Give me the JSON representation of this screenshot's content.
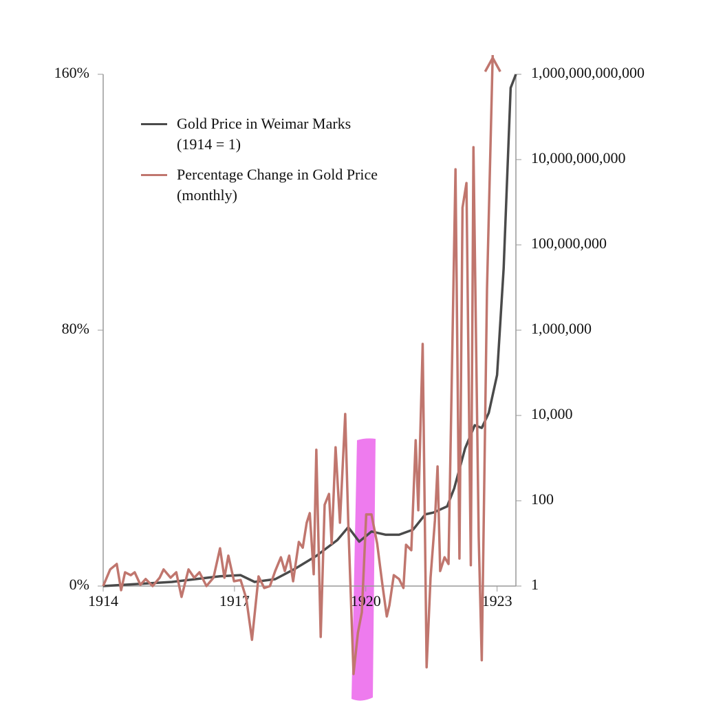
{
  "chart_data": {
    "type": "line",
    "xlim": [
      1914,
      1923.43
    ],
    "xticks": [
      1914,
      1917,
      1920,
      1923
    ],
    "ylim": [
      0,
      160
    ],
    "yticks": [
      {
        "value": 0,
        "label": "0%"
      },
      {
        "value": 80,
        "label": "80%"
      },
      {
        "value": 160,
        "label": "160%"
      }
    ],
    "y2lim": [
      1,
      1000000000000
    ],
    "y2log": true,
    "y2ticks": [
      {
        "value": 1,
        "label": "1"
      },
      {
        "value": 100,
        "label": "100"
      },
      {
        "value": 10000,
        "label": "10,000"
      },
      {
        "value": 1000000,
        "label": "1,000,000"
      },
      {
        "value": 100000000,
        "label": "100,000,000"
      },
      {
        "value": 10000000000,
        "label": "10,000,000,000"
      },
      {
        "value": 1000000000000,
        "label": "1,000,000,000,000"
      }
    ],
    "series": [
      {
        "name": "Gold Price in Weimar Marks\n(1914 = 1)",
        "color": "#4a4a4a",
        "axis": "y2",
        "x": [
          1914.0,
          1915.57,
          1916.67,
          1917.14,
          1917.46,
          1917.93,
          1918.4,
          1918.87,
          1919.35,
          1919.6,
          1919.85,
          1920.13,
          1920.45,
          1920.76,
          1921.08,
          1921.36,
          1921.55,
          1921.86,
          1922.02,
          1922.27,
          1922.49,
          1922.65,
          1922.81,
          1923.0,
          1923.15,
          1923.31,
          1923.43
        ],
        "values": [
          1,
          1.25,
          1.7,
          1.8,
          1.25,
          1.45,
          2.6,
          5.1,
          12,
          24,
          11,
          19,
          16,
          16,
          21,
          48,
          53,
          74,
          195,
          1700,
          5900,
          5100,
          11500,
          89000,
          28000000,
          480000000000,
          1000000000000
        ]
      },
      {
        "name": "Percentage Change in Gold Price\n(monthly)",
        "color": "#c0766e",
        "x": [
          1914.0,
          1914.16,
          1914.31,
          1914.41,
          1914.5,
          1914.63,
          1914.72,
          1914.85,
          1914.97,
          1915.13,
          1915.29,
          1915.38,
          1915.54,
          1915.67,
          1915.79,
          1915.95,
          1916.08,
          1916.2,
          1916.36,
          1916.52,
          1916.67,
          1916.77,
          1916.86,
          1916.99,
          1917.14,
          1917.27,
          1917.4,
          1917.55,
          1917.68,
          1917.81,
          1917.93,
          1918.06,
          1918.15,
          1918.25,
          1918.34,
          1918.47,
          1918.56,
          1918.65,
          1918.72,
          1918.81,
          1918.87,
          1918.97,
          1919.06,
          1919.16,
          1919.22,
          1919.31,
          1919.41,
          1919.53,
          1919.6,
          1919.72,
          1919.82,
          1919.91,
          1920.01,
          1920.13,
          1920.26,
          1920.38,
          1920.48,
          1920.54,
          1920.64,
          1920.76,
          1920.86,
          1920.92,
          1921.04,
          1921.14,
          1921.2,
          1921.3,
          1921.39,
          1921.48,
          1921.58,
          1921.64,
          1921.7,
          1921.8,
          1921.89,
          1922.05,
          1922.14,
          1922.21,
          1922.3,
          1922.4,
          1922.46,
          1922.58,
          1922.65,
          1922.77,
          1922.9
        ],
        "values": [
          0,
          5.2,
          6.9,
          -1.3,
          4.3,
          3.4,
          4.3,
          0.4,
          2.2,
          0,
          2.6,
          5.2,
          2.6,
          4.3,
          -3.4,
          5.2,
          2.6,
          4.3,
          0,
          2.6,
          11.8,
          2.6,
          9.5,
          1.5,
          1.9,
          -3.9,
          -16.8,
          3.0,
          -0.6,
          0,
          4.7,
          9.0,
          4.7,
          9.5,
          1.5,
          13.8,
          12.0,
          19.8,
          22.8,
          3.7,
          42.6,
          -15.9,
          25.4,
          28.8,
          13.3,
          43.4,
          19.8,
          53.8,
          19.8,
          -27.5,
          -14.6,
          -8.2,
          22.4,
          22.4,
          13.3,
          0.4,
          -9.5,
          -6.0,
          3.4,
          2.2,
          -0.6,
          12.9,
          11.2,
          45.6,
          23.7,
          75.7,
          -25.4,
          2.6,
          20.6,
          37.4,
          4.7,
          9.0,
          6.9,
          130.3,
          8.6,
          118.3,
          126.0,
          6.5,
          137.2,
          15.5,
          -23.2,
          92.9,
          166
        ]
      }
    ]
  }
}
